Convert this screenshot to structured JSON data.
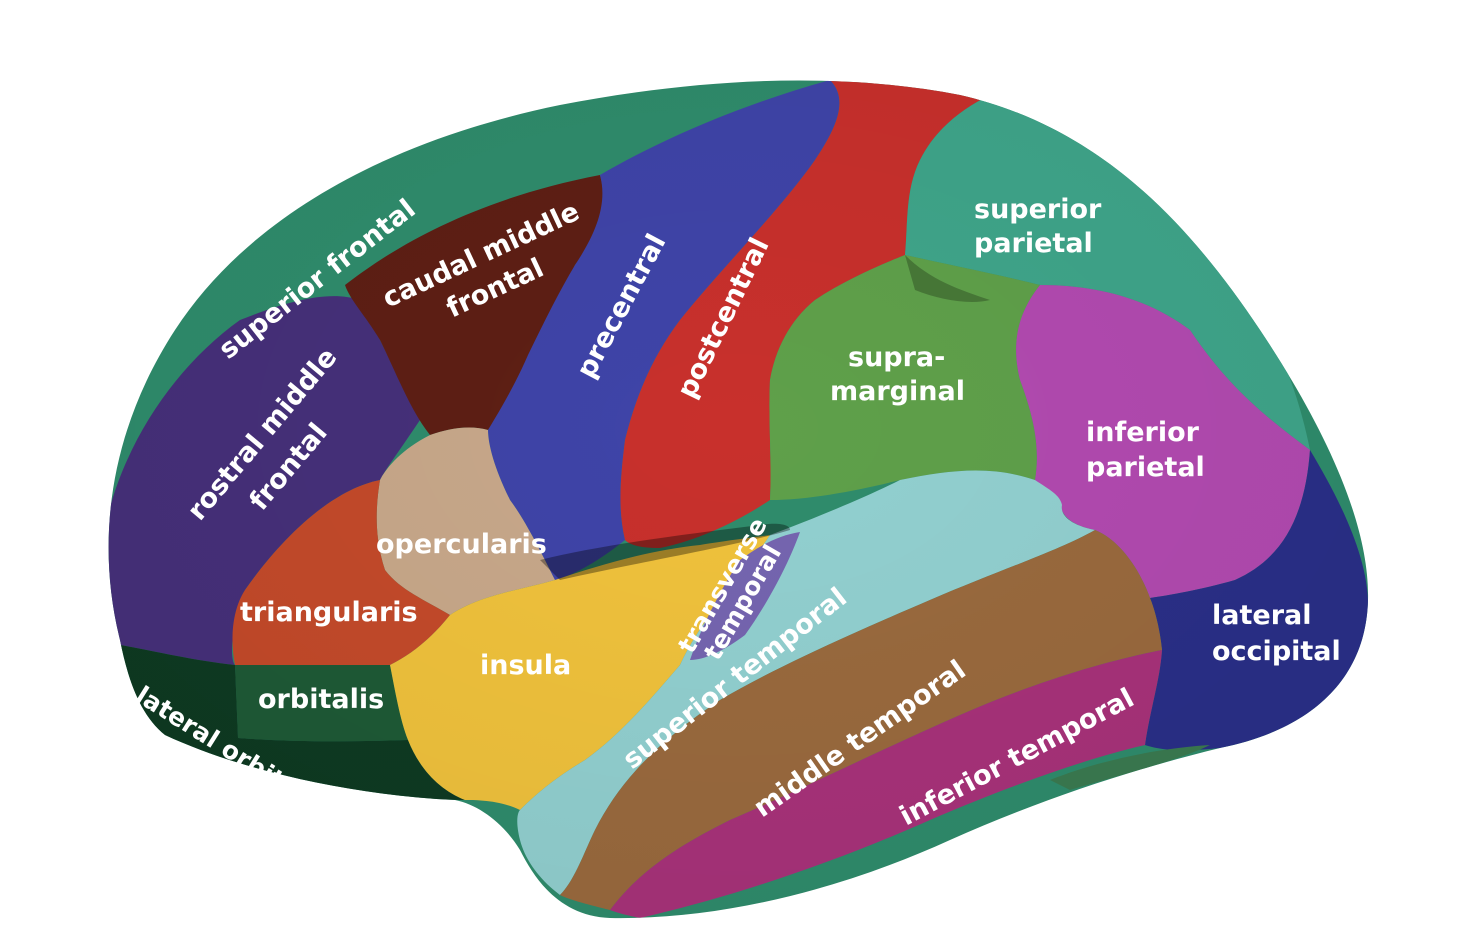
{
  "regions": {
    "superior_frontal": {
      "label": "superior frontal",
      "color": "#2f8c6c"
    },
    "caudal_middle_frontal": {
      "label_line1": "caudal middle",
      "label_line2": "frontal",
      "color": "#5e1f14"
    },
    "precentral": {
      "label": "precentral",
      "color": "#3f44a8"
    },
    "postcentral": {
      "label": "postcentral",
      "color": "#c8302c"
    },
    "superior_parietal": {
      "label_line1": "superior",
      "label_line2": "parietal",
      "color": "#3fa58a"
    },
    "supramarginal": {
      "label_line1": "supra-",
      "label_line2": "marginal",
      "color": "#5fa04a"
    },
    "inferior_parietal": {
      "label_line1": "inferior",
      "label_line2": "parietal",
      "color": "#b24ab0"
    },
    "rostral_middle_frontal": {
      "label_line1": "rostral middle",
      "label_line2": "frontal",
      "color": "#46307a"
    },
    "opercularis": {
      "label": "opercularis",
      "color": "#c8a88a"
    },
    "triangularis": {
      "label": "triangularis",
      "color": "#c44a2a"
    },
    "orbitalis": {
      "label": "orbitalis",
      "color": "#1e5a36"
    },
    "lateral_orbitofrontal": {
      "label": "lateral orbitofrontal",
      "color": "#0e3a22"
    },
    "insula": {
      "label": "insula",
      "color": "#f0c23c"
    },
    "transverse_temporal": {
      "label_line1": "transverse",
      "label_line2": "temporal",
      "color": "#7565b0"
    },
    "superior_temporal": {
      "label": "superior temporal",
      "color": "#92d0d0"
    },
    "middle_temporal": {
      "label": "middle temporal",
      "color": "#9a6a3e"
    },
    "inferior_temporal": {
      "label": "inferior temporal",
      "color": "#a8327a"
    },
    "lateral_occipital": {
      "label_line1": "lateral",
      "label_line2": "occipital",
      "color": "#2a2f88"
    }
  }
}
